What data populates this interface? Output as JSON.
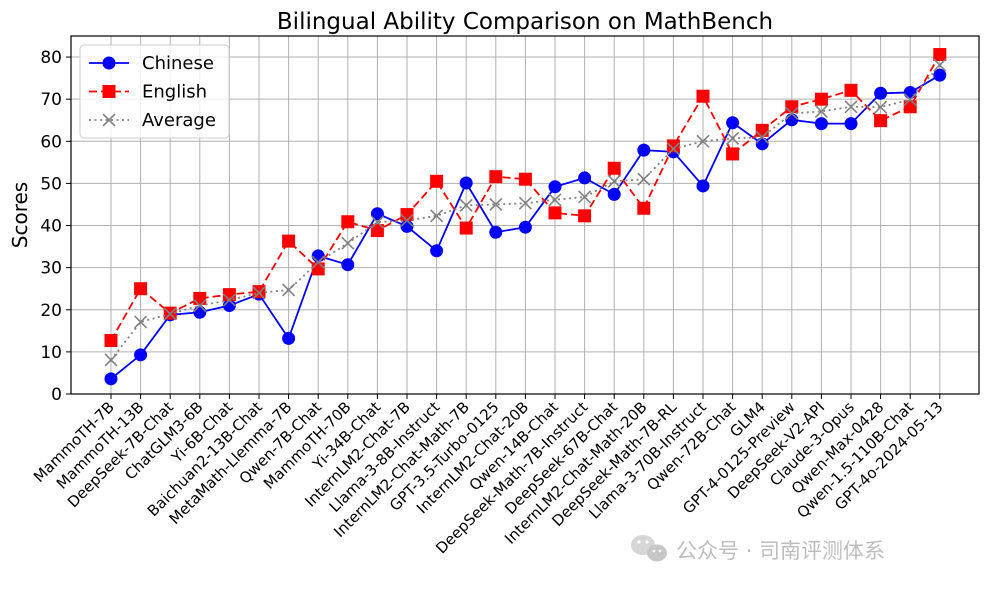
{
  "chart_data": {
    "type": "line",
    "title": "Bilingual Ability Comparison on MathBench",
    "xlabel": "",
    "ylabel": "Scores",
    "ylim": [
      0,
      85
    ],
    "yticks": [
      0,
      10,
      20,
      30,
      40,
      50,
      60,
      70,
      80
    ],
    "grid": true,
    "legend_position": "top-left",
    "categories": [
      "MammoTH-7B",
      "MammoTH-13B",
      "DeepSeek-7B-Chat",
      "ChatGLM3-6B",
      "Yi-6B-Chat",
      "Baichuan2-13B-Chat",
      "MetaMath-Llemma-7B",
      "Qwen-7B-Chat",
      "MammoTH-70B",
      "Yi-34B-Chat",
      "InternLM2-Chat-7B",
      "Llama-3-8B-Instruct",
      "InternLM2-Chat-Math-7B",
      "GPT-3.5-Turbo-0125",
      "InternLM2-Chat-20B",
      "Qwen-14B-Chat",
      "DeepSeek-Math-7B-Instruct",
      "DeepSeek-67B-Chat",
      "InternLM2-Chat-Math-20B",
      "DeepSeek-Math-7B-RL",
      "Llama-3-70B-Instruct",
      "Qwen-72B-Chat",
      "GLM4",
      "GPT-4-0125-Preview",
      "DeepSeek-V2-API",
      "Claude-3-Opus",
      "Qwen-Max-0428",
      "Qwen-1.5-110B-Chat",
      "GPT-4o-2024-05-13"
    ],
    "series": [
      {
        "name": "Chinese",
        "color": "#0000ff",
        "marker": "circle",
        "line_style": "solid",
        "values": [
          3.6,
          9.3,
          18.8,
          19.4,
          21.0,
          23.7,
          13.2,
          32.8,
          30.7,
          42.8,
          39.8,
          34.0,
          50.1,
          38.4,
          39.6,
          49.2,
          51.3,
          47.4,
          57.9,
          57.5,
          49.4,
          64.4,
          59.4,
          65.1,
          64.2,
          64.2,
          71.4,
          71.6,
          75.7
        ]
      },
      {
        "name": "English",
        "color": "#ff0000",
        "marker": "square",
        "line_style": "dashed",
        "values": [
          12.7,
          25.0,
          19.2,
          22.7,
          23.6,
          24.3,
          36.3,
          29.7,
          40.9,
          38.8,
          42.6,
          50.5,
          39.4,
          51.6,
          51.0,
          43.0,
          42.3,
          53.6,
          44.1,
          58.9,
          70.7,
          57.0,
          62.6,
          68.2,
          70.0,
          72.1,
          64.9,
          68.2,
          80.6
        ]
      },
      {
        "name": "Average",
        "color": "#808080",
        "marker": "x",
        "line_style": "dotted",
        "values": [
          8.1,
          17.1,
          19.0,
          21.0,
          22.3,
          24.0,
          24.7,
          31.3,
          35.8,
          40.8,
          41.2,
          42.3,
          44.8,
          45.0,
          45.3,
          46.1,
          46.8,
          50.5,
          51.0,
          58.2,
          60.0,
          60.7,
          61.0,
          66.6,
          67.1,
          68.2,
          68.1,
          69.9,
          78.1
        ]
      }
    ]
  },
  "watermark": {
    "text": "公众号 · 司南评测体系",
    "icon": "wechat-icon"
  }
}
